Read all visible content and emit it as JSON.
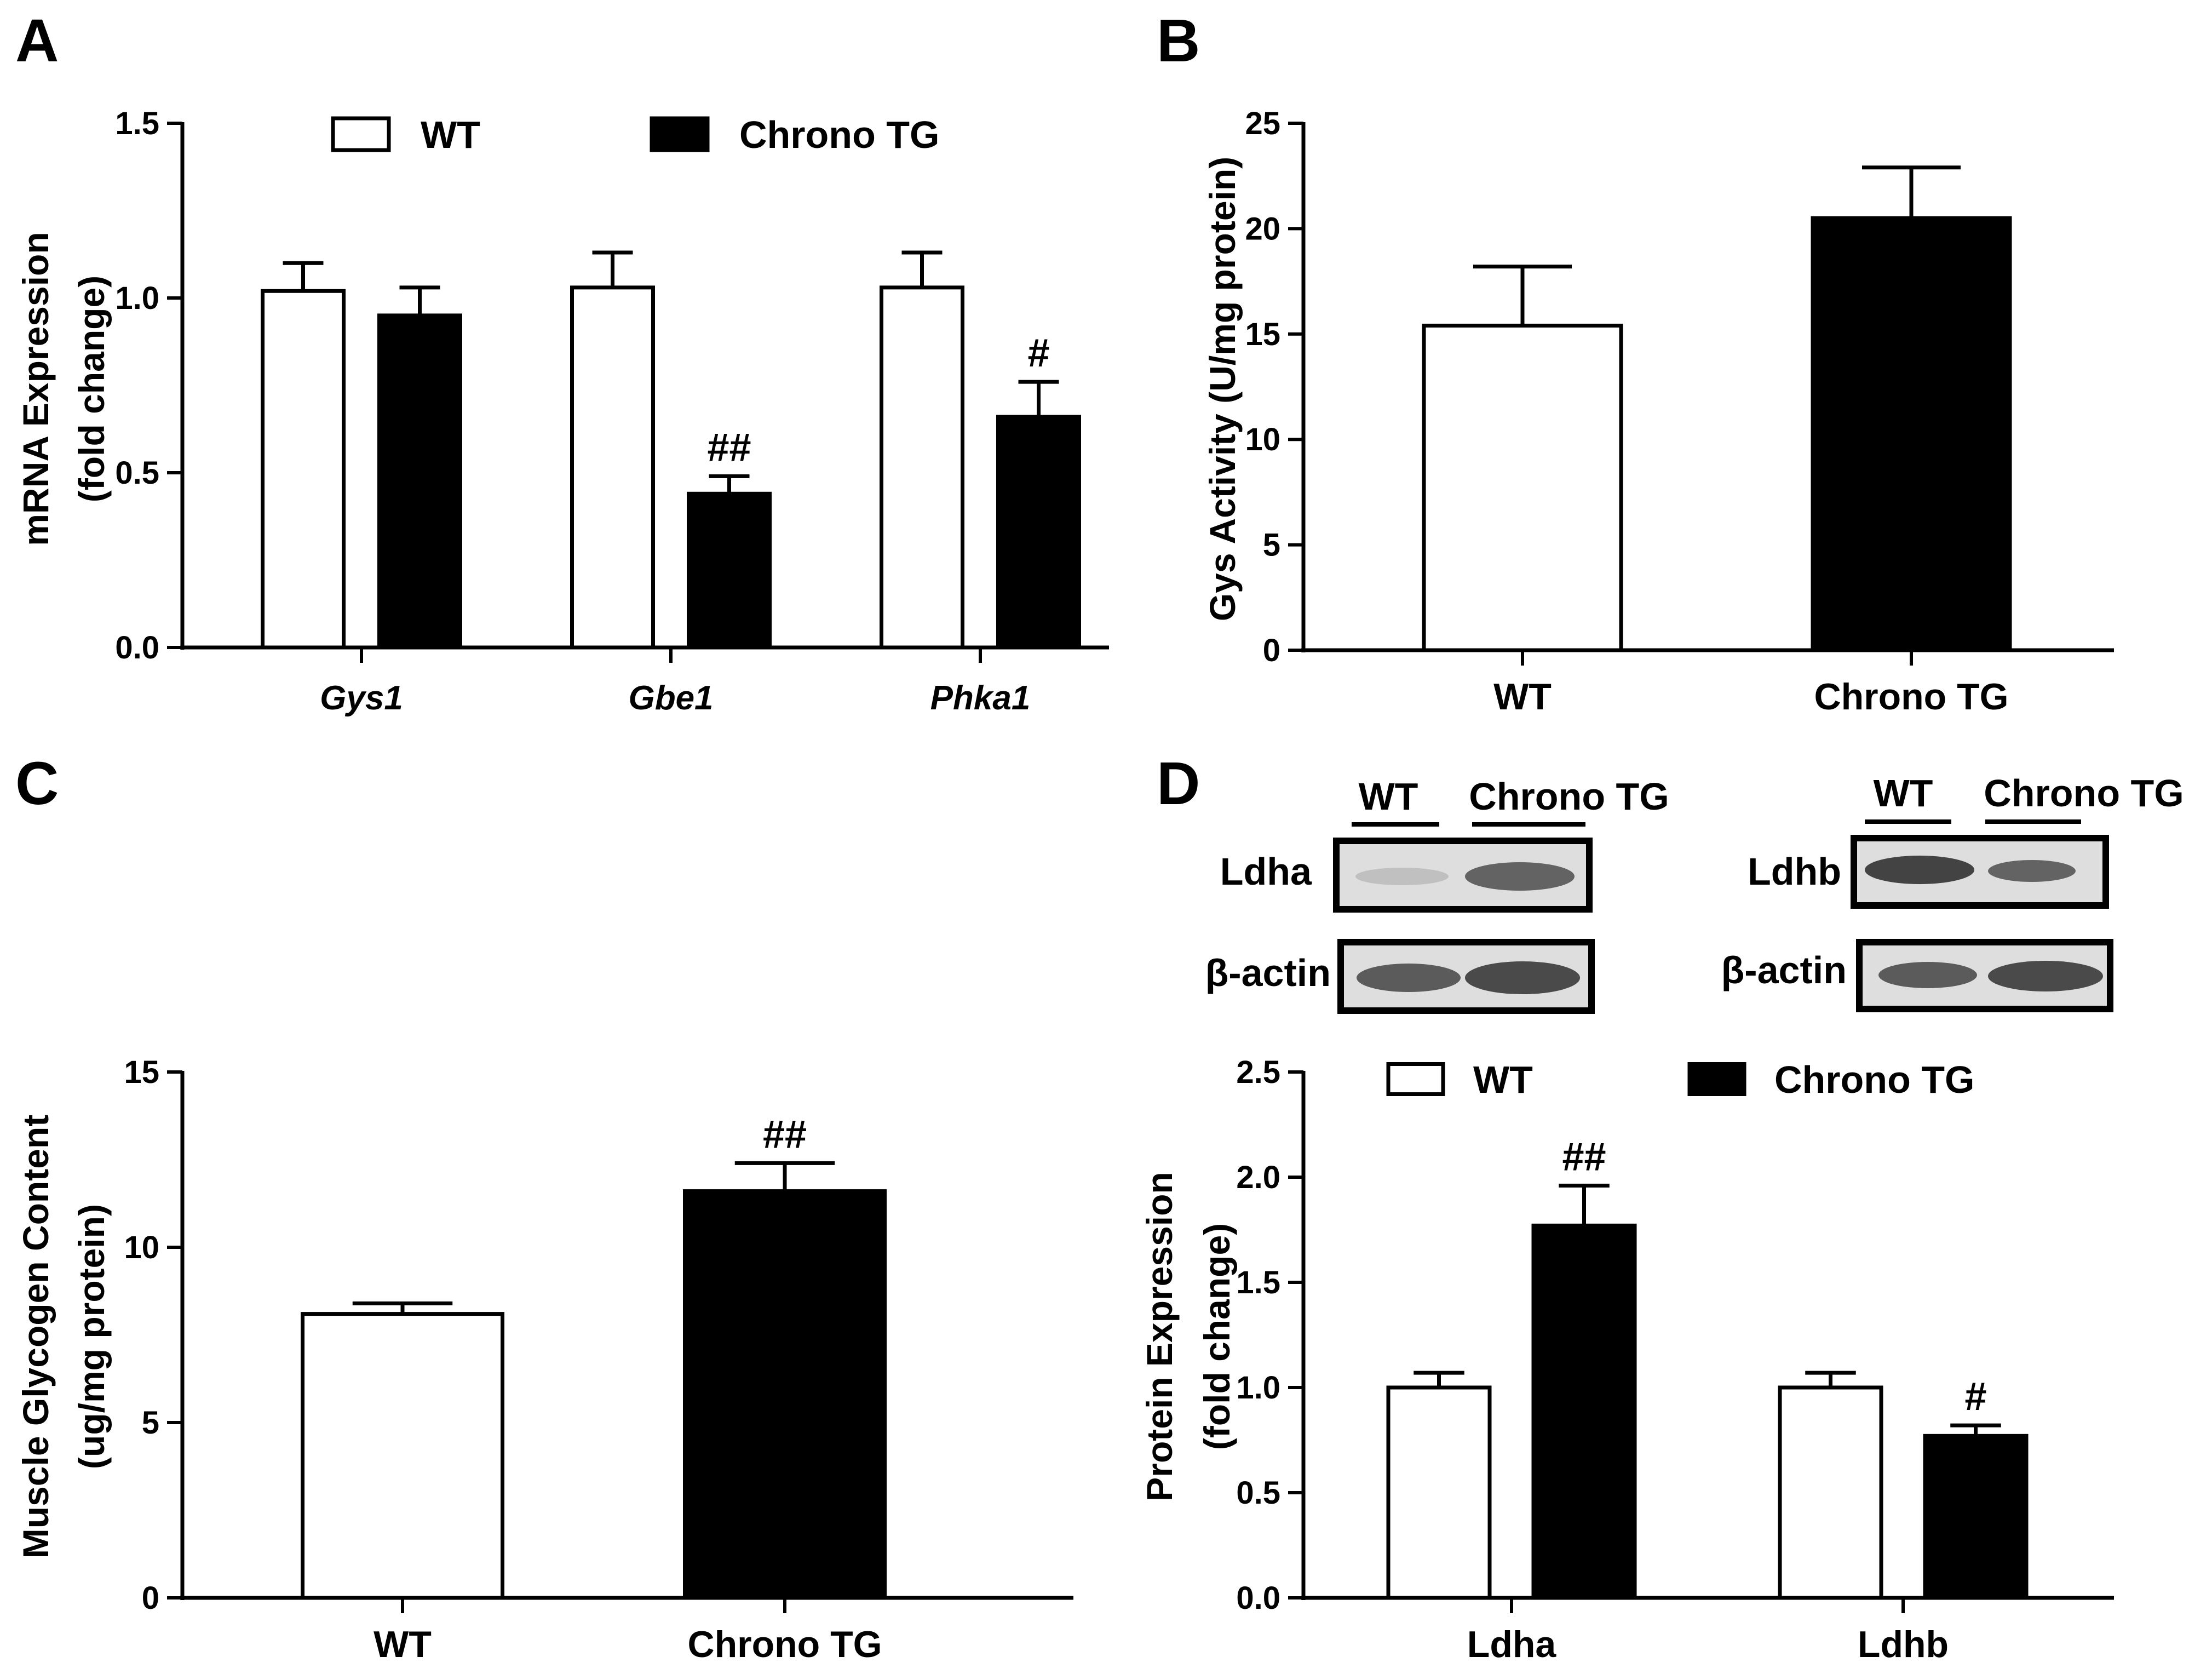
{
  "panels": [
    {
      "id": "A",
      "label": "A"
    },
    {
      "id": "B",
      "label": "B"
    },
    {
      "id": "C",
      "label": "C"
    },
    {
      "id": "D",
      "label": "D"
    }
  ],
  "colors": {
    "wt": "#ffffff",
    "tg": "#000000",
    "axis": "#000000"
  },
  "blot": {
    "groups": [
      "WT",
      "Chrono TG"
    ],
    "rows": [
      {
        "target": "Ldha",
        "control": "β-actin"
      },
      {
        "target": "Ldhb",
        "control": "β-actin"
      }
    ]
  },
  "chart_data": [
    {
      "panel": "A",
      "type": "bar",
      "title": "",
      "xlabel": "",
      "ylabel": "mRNA Expression",
      "ylabel2": "(fold change)",
      "categories": [
        "Gys1",
        "Gbe1",
        "Phka1"
      ],
      "categories_italic": true,
      "series": [
        {
          "name": "WT",
          "values": [
            1.02,
            1.03,
            1.03
          ],
          "errors": [
            0.08,
            0.1,
            0.1
          ]
        },
        {
          "name": "Chrono TG",
          "values": [
            0.95,
            0.44,
            0.66
          ],
          "errors": [
            0.08,
            0.05,
            0.1
          ]
        }
      ],
      "annotations": [
        "",
        "##",
        "#"
      ],
      "ylim": [
        0,
        1.5
      ],
      "yticks": [
        0.0,
        0.5,
        1.0,
        1.5
      ],
      "ytick_labels": [
        "0.0",
        "0.5",
        "1.0",
        "1.5"
      ],
      "legend": "top"
    },
    {
      "panel": "B",
      "type": "bar",
      "title": "",
      "xlabel": "",
      "ylabel": "Gys Activity (U/mg protein)",
      "ylabel2": "",
      "categories": [
        "WT",
        "Chrono TG"
      ],
      "values": [
        15.4,
        20.5
      ],
      "errors": [
        2.8,
        2.4
      ],
      "annotations": [
        "",
        ""
      ],
      "ylim": [
        0,
        25
      ],
      "yticks": [
        0,
        5,
        10,
        15,
        20,
        25
      ],
      "ytick_labels": [
        "0",
        "5",
        "10",
        "15",
        "20",
        "25"
      ]
    },
    {
      "panel": "C",
      "type": "bar",
      "title": "",
      "xlabel": "",
      "ylabel": "Muscle Glycogen Content",
      "ylabel2": "(ug/mg protein)",
      "categories": [
        "WT",
        "Chrono TG"
      ],
      "values": [
        8.1,
        11.6
      ],
      "errors": [
        0.3,
        0.8
      ],
      "annotations": [
        "",
        "##"
      ],
      "ylim": [
        0,
        15
      ],
      "yticks": [
        0,
        5,
        10,
        15
      ],
      "ytick_labels": [
        "0",
        "5",
        "10",
        "15"
      ]
    },
    {
      "panel": "D",
      "type": "bar",
      "title": "",
      "xlabel": "",
      "ylabel": "Protein Expression",
      "ylabel2": "(fold change)",
      "categories": [
        "Ldha",
        "Ldhb"
      ],
      "categories_italic": false,
      "series": [
        {
          "name": "WT",
          "values": [
            1.0,
            1.0
          ],
          "errors": [
            0.07,
            0.07
          ]
        },
        {
          "name": "Chrono TG",
          "values": [
            1.77,
            0.77
          ],
          "errors": [
            0.19,
            0.05
          ]
        }
      ],
      "annotations": [
        "##",
        "#"
      ],
      "ylim": [
        0,
        2.5
      ],
      "yticks": [
        0.0,
        0.5,
        1.0,
        1.5,
        2.0,
        2.5
      ],
      "ytick_labels": [
        "0.0",
        "0.5",
        "1.0",
        "1.5",
        "2.0",
        "2.5"
      ],
      "legend": "top"
    }
  ]
}
